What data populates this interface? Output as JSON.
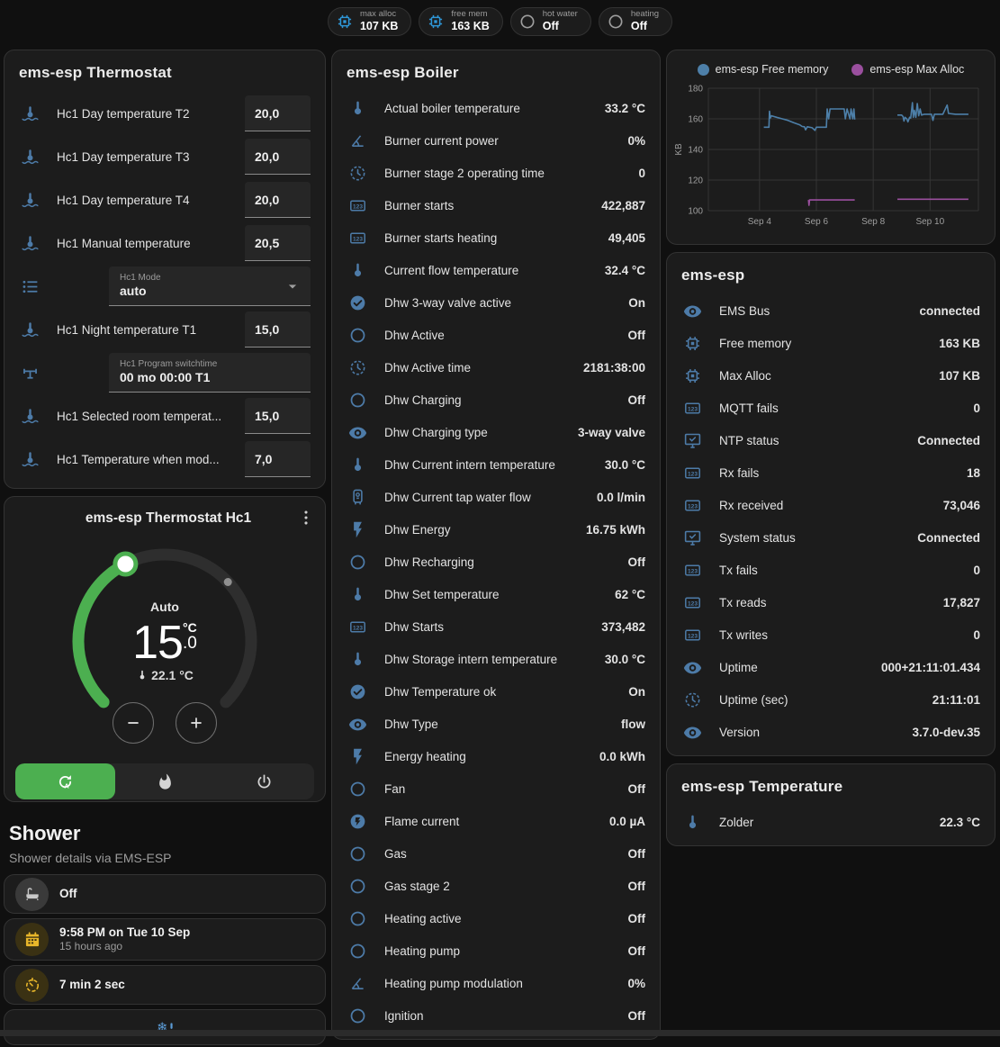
{
  "colors": {
    "icon_blue": "#4d7ba8",
    "accent_green": "#4caf50",
    "amber": "#e8b62a",
    "chart_blue": "#4d7fa8",
    "chart_purple": "#9a4f9e"
  },
  "badges": [
    {
      "icon": "chip",
      "icon_color": "blue",
      "label": "max alloc",
      "value": "107 KB"
    },
    {
      "icon": "chip",
      "icon_color": "blue",
      "label": "free mem",
      "value": "163 KB"
    },
    {
      "icon": "circle-outline",
      "icon_color": "gray",
      "label": "hot water",
      "value": "Off"
    },
    {
      "icon": "circle-outline",
      "icon_color": "gray",
      "label": "heating",
      "value": "Off"
    }
  ],
  "thermostat_card": {
    "title": "ems-esp Thermostat",
    "rows": [
      {
        "icon": "water-thermometer",
        "label": "Hc1 Day temperature T2",
        "type": "number",
        "value": "20,0"
      },
      {
        "icon": "water-thermometer",
        "label": "Hc1 Day temperature T3",
        "type": "number",
        "value": "20,0"
      },
      {
        "icon": "water-thermometer",
        "label": "Hc1 Day temperature T4",
        "type": "number",
        "value": "20,0"
      },
      {
        "icon": "water-thermometer",
        "label": "Hc1 Manual temperature",
        "type": "number",
        "value": "20,5"
      },
      {
        "icon": "list",
        "label": "Hc1 Mode",
        "type": "select",
        "value": "auto"
      },
      {
        "icon": "water-thermometer",
        "label": "Hc1 Night temperature T1",
        "type": "number",
        "value": "15,0"
      },
      {
        "icon": "pipe-valve",
        "label": "Hc1 Program switchtime",
        "type": "text",
        "value": "00 mo 00:00 T1"
      },
      {
        "icon": "water-thermometer",
        "label": "Hc1 Selected room temperat...",
        "type": "number",
        "value": "15,0"
      },
      {
        "icon": "water-thermometer",
        "label": "Hc1 Temperature when mod...",
        "type": "number",
        "value": "7,0"
      }
    ]
  },
  "dial_card": {
    "title": "ems-esp Thermostat Hc1",
    "mode_label": "Auto",
    "target_int": "15",
    "target_dec": ".0",
    "target_unit": "°C",
    "current_temp": "22.1 °C",
    "modes": [
      {
        "icon": "auto",
        "active": true
      },
      {
        "icon": "fire",
        "active": false
      },
      {
        "icon": "power",
        "active": false
      }
    ]
  },
  "shower": {
    "title": "Shower",
    "subtitle": "Shower details via EMS-ESP",
    "items": [
      {
        "icon": "bathtub",
        "icon_color": "gray",
        "primary": "Off",
        "secondary": ""
      },
      {
        "icon": "calendar",
        "icon_color": "amber",
        "primary": "9:58 PM on Tue 10 Sep",
        "secondary": "15 hours ago"
      },
      {
        "icon": "timer",
        "icon_color": "amber",
        "primary": "7 min 2 sec",
        "secondary": ""
      }
    ]
  },
  "boiler_card": {
    "title": "ems-esp Boiler",
    "rows": [
      {
        "icon": "thermometer",
        "label": "Actual boiler temperature",
        "value": "33.2 °C"
      },
      {
        "icon": "angle",
        "label": "Burner current power",
        "value": "0%"
      },
      {
        "icon": "clock",
        "label": "Burner stage 2 operating time",
        "value": "0"
      },
      {
        "icon": "counter",
        "label": "Burner starts",
        "value": "422,887"
      },
      {
        "icon": "counter",
        "label": "Burner starts heating",
        "value": "49,405"
      },
      {
        "icon": "thermometer",
        "label": "Current flow temperature",
        "value": "32.4 °C"
      },
      {
        "icon": "check-circle",
        "label": "Dhw 3-way valve active",
        "value": "On"
      },
      {
        "icon": "circle-outline",
        "label": "Dhw Active",
        "value": "Off"
      },
      {
        "icon": "clock",
        "label": "Dhw Active time",
        "value": "2181:38:00"
      },
      {
        "icon": "circle-outline",
        "label": "Dhw Charging",
        "value": "Off"
      },
      {
        "icon": "eye",
        "label": "Dhw Charging type",
        "value": "3-way valve"
      },
      {
        "icon": "thermometer",
        "label": "Dhw Current intern temperature",
        "value": "30.0 °C"
      },
      {
        "icon": "water-boiler",
        "label": "Dhw Current tap water flow",
        "value": "0.0 l/min"
      },
      {
        "icon": "flash",
        "label": "Dhw Energy",
        "value": "16.75 kWh"
      },
      {
        "icon": "circle-outline",
        "label": "Dhw Recharging",
        "value": "Off"
      },
      {
        "icon": "thermometer",
        "label": "Dhw Set temperature",
        "value": "62 °C"
      },
      {
        "icon": "counter",
        "label": "Dhw Starts",
        "value": "373,482"
      },
      {
        "icon": "thermometer",
        "label": "Dhw Storage intern temperature",
        "value": "30.0 °C"
      },
      {
        "icon": "check-circle",
        "label": "Dhw Temperature ok",
        "value": "On"
      },
      {
        "icon": "eye",
        "label": "Dhw Type",
        "value": "flow"
      },
      {
        "icon": "flash",
        "label": "Energy heating",
        "value": "0.0 kWh"
      },
      {
        "icon": "circle-outline",
        "label": "Fan",
        "value": "Off"
      },
      {
        "icon": "flash-circle",
        "label": "Flame current",
        "value": "0.0 µA"
      },
      {
        "icon": "circle-outline",
        "label": "Gas",
        "value": "Off"
      },
      {
        "icon": "circle-outline",
        "label": "Gas stage 2",
        "value": "Off"
      },
      {
        "icon": "circle-outline",
        "label": "Heating active",
        "value": "Off"
      },
      {
        "icon": "circle-outline",
        "label": "Heating pump",
        "value": "Off"
      },
      {
        "icon": "angle",
        "label": "Heating pump modulation",
        "value": "0%"
      },
      {
        "icon": "circle-outline",
        "label": "Ignition",
        "value": "Off"
      }
    ]
  },
  "chart_data": {
    "type": "line",
    "title": "",
    "ylabel": "KB",
    "x_range": [
      2.2,
      11.7
    ],
    "y_range": [
      100,
      180
    ],
    "yticks": [
      100,
      120,
      140,
      160,
      180
    ],
    "xticks": [
      {
        "pos": 4,
        "label": "Sep 4"
      },
      {
        "pos": 6,
        "label": "Sep 6"
      },
      {
        "pos": 8,
        "label": "Sep 8"
      },
      {
        "pos": 10,
        "label": "Sep 10"
      }
    ],
    "grid": true,
    "legend_position": "top",
    "series": [
      {
        "name": "ems-esp Free memory",
        "color": "#4d7fa8",
        "segments": [
          [
            [
              4.15,
              154.5
            ],
            [
              4.33,
              154.5
            ],
            [
              4.35,
              165
            ],
            [
              4.38,
              160.5
            ],
            [
              4.42,
              162
            ],
            [
              4.6,
              161
            ],
            [
              4.8,
              160
            ],
            [
              5.0,
              159
            ],
            [
              5.2,
              157.5
            ],
            [
              5.42,
              156
            ],
            [
              5.5,
              155
            ],
            [
              5.58,
              154.8
            ],
            [
              5.62,
              152.8
            ],
            [
              5.68,
              154.8
            ],
            [
              5.85,
              154.2
            ],
            [
              5.95,
              152.5
            ],
            [
              6.0,
              154.5
            ],
            [
              6.35,
              154.5
            ],
            [
              6.38,
              166.5
            ],
            [
              6.43,
              160
            ],
            [
              6.48,
              166.5
            ],
            [
              6.98,
              166.5
            ],
            [
              7.02,
              160
            ],
            [
              7.08,
              166.5
            ],
            [
              7.18,
              160
            ],
            [
              7.22,
              166.5
            ],
            [
              7.28,
              160
            ],
            [
              7.32,
              166.5
            ],
            [
              7.35,
              159.5
            ]
          ],
          [
            [
              8.85,
              162.5
            ],
            [
              9.0,
              162.5
            ],
            [
              9.05,
              161.5
            ],
            [
              9.08,
              158.5
            ],
            [
              9.12,
              161
            ],
            [
              9.18,
              160
            ],
            [
              9.22,
              158
            ],
            [
              9.28,
              161
            ],
            [
              9.32,
              160.5
            ],
            [
              9.38,
              170.5
            ],
            [
              9.41,
              161
            ],
            [
              9.45,
              165.5
            ],
            [
              9.5,
              161
            ],
            [
              9.55,
              170
            ],
            [
              9.6,
              162
            ],
            [
              9.65,
              166.5
            ],
            [
              9.7,
              162.5
            ],
            [
              9.8,
              163
            ],
            [
              10.05,
              163
            ],
            [
              10.1,
              159
            ],
            [
              10.15,
              163
            ],
            [
              10.45,
              163
            ],
            [
              10.6,
              169
            ],
            [
              10.65,
              163.5
            ],
            [
              10.9,
              163
            ],
            [
              11.35,
              163
            ]
          ]
        ]
      },
      {
        "name": "ems-esp Max Alloc",
        "color": "#9a4f9e",
        "segments": [
          [
            [
              5.72,
              107
            ],
            [
              5.74,
              103.5
            ],
            [
              5.76,
              107
            ],
            [
              7.35,
              107
            ]
          ],
          [
            [
              8.85,
              107.5
            ],
            [
              11.35,
              107.5
            ]
          ]
        ]
      }
    ]
  },
  "emsesp_card": {
    "title": "ems-esp",
    "rows": [
      {
        "icon": "eye",
        "label": "EMS Bus",
        "value": "connected"
      },
      {
        "icon": "chip",
        "label": "Free memory",
        "value": "163 KB"
      },
      {
        "icon": "chip",
        "label": "Max Alloc",
        "value": "107 KB"
      },
      {
        "icon": "counter",
        "label": "MQTT fails",
        "value": "0"
      },
      {
        "icon": "monitor-check",
        "label": "NTP status",
        "value": "Connected"
      },
      {
        "icon": "counter",
        "label": "Rx fails",
        "value": "18"
      },
      {
        "icon": "counter",
        "label": "Rx received",
        "value": "73,046"
      },
      {
        "icon": "monitor-check",
        "label": "System status",
        "value": "Connected"
      },
      {
        "icon": "counter",
        "label": "Tx fails",
        "value": "0"
      },
      {
        "icon": "counter",
        "label": "Tx reads",
        "value": "17,827"
      },
      {
        "icon": "counter",
        "label": "Tx writes",
        "value": "0"
      },
      {
        "icon": "eye",
        "label": "Uptime",
        "value": "000+21:11:01.434"
      },
      {
        "icon": "clock",
        "label": "Uptime (sec)",
        "value": "21:11:01"
      },
      {
        "icon": "eye",
        "label": "Version",
        "value": "3.7.0-dev.35"
      }
    ]
  },
  "temperature_card": {
    "title": "ems-esp Temperature",
    "rows": [
      {
        "icon": "thermometer",
        "label": "Zolder",
        "value": "22.3 °C"
      }
    ]
  }
}
